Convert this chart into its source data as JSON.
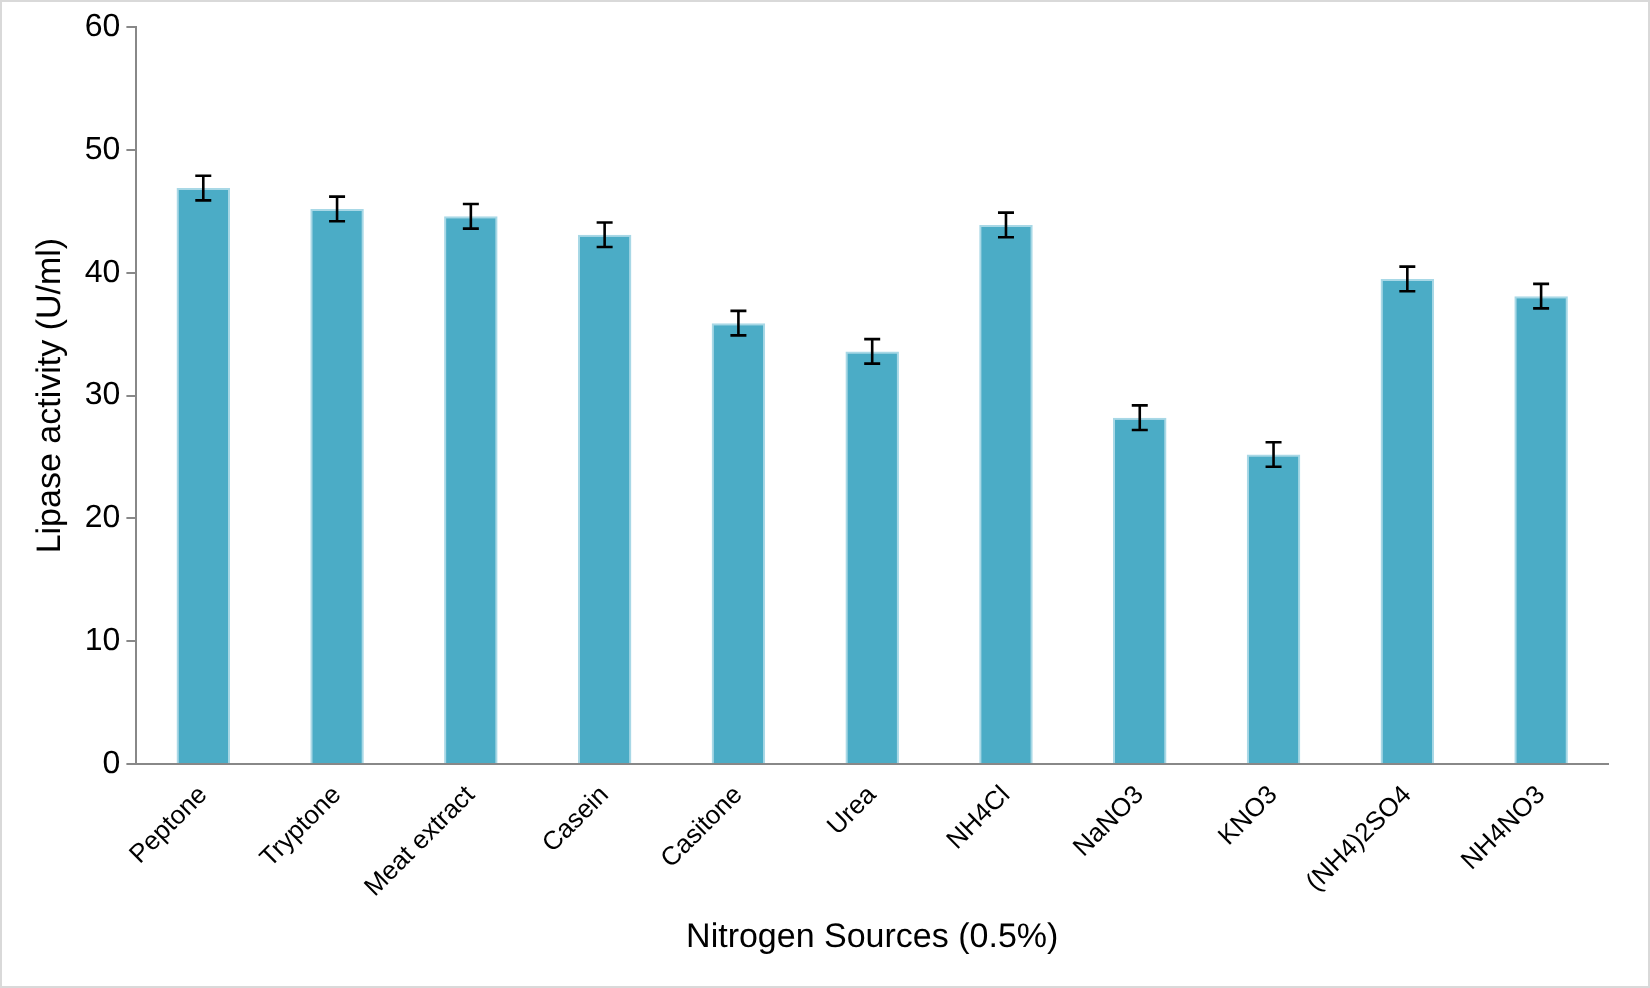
{
  "chart_data": {
    "type": "bar",
    "xlabel": "Nitrogen Sources (0.5%)",
    "ylabel": "Lipase activity (U/ml)",
    "categories": [
      "Peptone",
      "Tryptone",
      "Meat extract",
      "Casein",
      "Casitone",
      "Urea",
      "NH4Cl",
      "NaNO3",
      "KNO3",
      "(NH4)2SO4",
      "NH4NO3"
    ],
    "values": [
      46.9,
      45.2,
      44.6,
      43.1,
      35.9,
      33.6,
      43.9,
      28.2,
      25.2,
      39.5,
      38.1
    ],
    "errors": [
      1,
      1,
      1,
      1,
      1,
      1,
      1,
      1,
      1,
      1,
      1
    ],
    "color": "#4bacc6",
    "ylim": [
      0,
      60
    ],
    "yticks": [
      0,
      10,
      20,
      30,
      40,
      50,
      60
    ],
    "grid": false,
    "legend": false
  }
}
